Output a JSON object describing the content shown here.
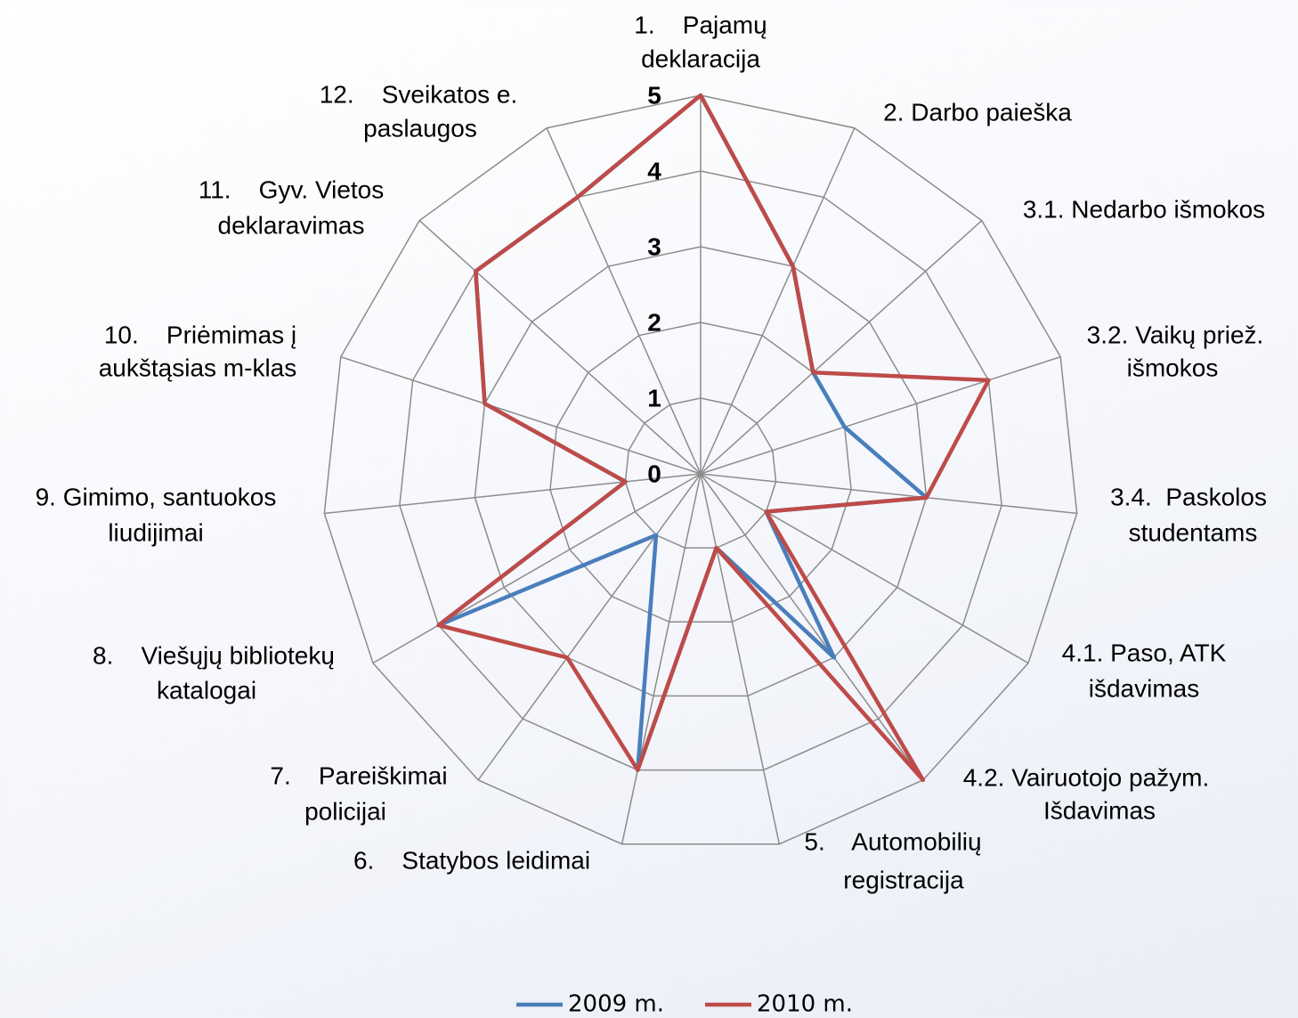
{
  "chart_data": {
    "type": "radar",
    "categories": [
      [
        "1.    Pajamų",
        "deklaracija"
      ],
      [
        "2. Darbo paieška"
      ],
      [
        "3.1. Nedarbo išmokos"
      ],
      [
        "3.2. Vaikų priež.",
        "išmokos"
      ],
      [
        "3.4.  Paskolos",
        "studentams"
      ],
      [
        "4.1. Paso, ATK",
        "išdavimas"
      ],
      [
        "4.2. Vairuotojo pažym.",
        "Išdavimas"
      ],
      [
        "5.    Automobilių",
        "registracija"
      ],
      [
        "6.    Statybos leidimai"
      ],
      [
        "7.    Pareiškimai",
        "policijai"
      ],
      [
        "8.    Viešųjų bibliotekų",
        "katalogai"
      ],
      [
        "9. Gimimo, santuokos",
        "liudijimai"
      ],
      [
        "10.    Priėmimas į",
        "aukštąsias m-klas"
      ],
      [
        "11.    Gyv. Vietos",
        "deklaravimas"
      ],
      [
        "12.    Sveikatos e.",
        "paslaugos"
      ]
    ],
    "series": [
      {
        "name": "2009 m.",
        "color": "#4a7ebb",
        "values": [
          5,
          3,
          2,
          2,
          3,
          1,
          3,
          1,
          4,
          1,
          4,
          1,
          3,
          4,
          4
        ]
      },
      {
        "name": "2010 m.",
        "color": "#be4b48",
        "values": [
          5,
          3,
          2,
          4,
          3,
          1,
          5,
          1,
          4,
          3,
          4,
          1,
          3,
          4,
          4
        ]
      }
    ],
    "ylim": [
      0,
      5
    ],
    "yticks": [
      0,
      1,
      2,
      3,
      4,
      5
    ],
    "grid": true,
    "legend": "bottom"
  }
}
